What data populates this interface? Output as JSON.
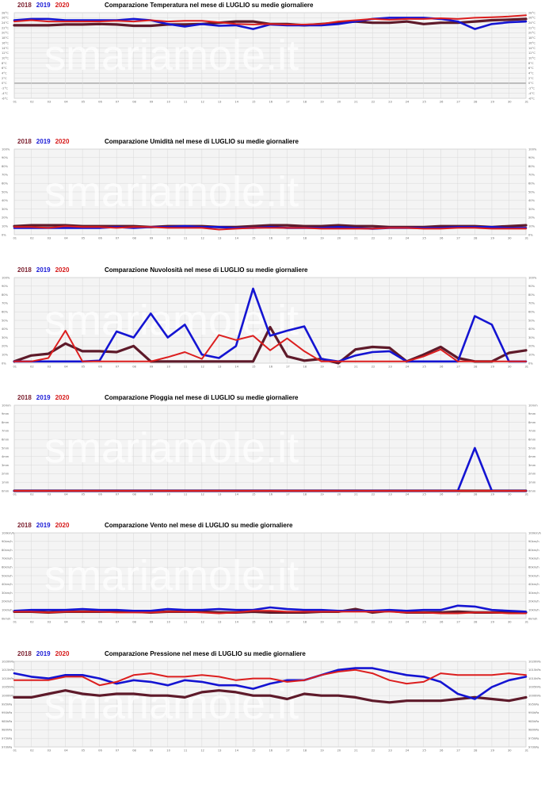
{
  "legend": {
    "items": [
      {
        "label": "2018",
        "color": "#7b1f2e"
      },
      {
        "label": "2019",
        "color": "#1a1ad6"
      },
      {
        "label": "2020",
        "color": "#d61a1a"
      }
    ]
  },
  "watermark": "smariamole.it",
  "colors": {
    "s2018": "#5e1a2a",
    "s2019": "#1414d2",
    "s2020": "#dc1e1e",
    "grid": "#d8d8d8",
    "plot_bg": "#f4f4f4"
  },
  "chart_data": [
    {
      "type": "line",
      "title": "Comparazione Temperatura nel mese di LUGLIO su medie giornaliere",
      "x": [
        1,
        2,
        3,
        4,
        5,
        6,
        7,
        8,
        9,
        10,
        11,
        12,
        13,
        14,
        15,
        16,
        17,
        18,
        19,
        20,
        21,
        22,
        23,
        24,
        25,
        26,
        27,
        28,
        29,
        30,
        31
      ],
      "ylim": [
        -6,
        28
      ],
      "y_ticks": [
        -6,
        -4,
        -2,
        0,
        2,
        4,
        6,
        8,
        10,
        12,
        14,
        16,
        18,
        20,
        22,
        24,
        26,
        28
      ],
      "y_tick_labels": [
        "-6°C",
        "-4°C",
        "-2°C",
        "0°C",
        "2°C",
        "4°C",
        "6°C",
        "8°C",
        "10°C",
        "12°C",
        "14°C",
        "16°C",
        "18°C",
        "20°C",
        "22°C",
        "24°C",
        "26°C",
        "28°C"
      ],
      "series": [
        {
          "name": "2018",
          "values": [
            23,
            23,
            23,
            23.3,
            23.3,
            23.5,
            23.3,
            22.8,
            22.8,
            23.3,
            23.3,
            23.5,
            24,
            24.5,
            24.5,
            23.5,
            23.5,
            23,
            23.5,
            24,
            24.5,
            24,
            24,
            24.5,
            23.5,
            24,
            24,
            24.5,
            25,
            25.2,
            25.5
          ]
        },
        {
          "name": "2019",
          "values": [
            25,
            25.5,
            25.5,
            25,
            25,
            25,
            25,
            25.5,
            25,
            23.5,
            22.5,
            23.5,
            22.8,
            23,
            21.5,
            23.3,
            23,
            23,
            23,
            23.5,
            24.5,
            25.5,
            26,
            26,
            26,
            25.5,
            24.5,
            21.5,
            23.5,
            24.2,
            24.5
          ]
        },
        {
          "name": "2020",
          "values": [
            24.5,
            25,
            24.5,
            24.5,
            24.5,
            24.5,
            24.8,
            24.5,
            25,
            24.5,
            24.8,
            24.8,
            24.2,
            23.5,
            23.3,
            23.5,
            23.3,
            23.3,
            23.5,
            24.5,
            25,
            25.5,
            25.2,
            25.5,
            25.5,
            25.8,
            25.5,
            26,
            26.2,
            26.5,
            27
          ]
        }
      ]
    },
    {
      "type": "line",
      "title": "Comparazione Umidità nel mese di LUGLIO su medie giornaliere",
      "x": [
        1,
        2,
        3,
        4,
        5,
        6,
        7,
        8,
        9,
        10,
        11,
        12,
        13,
        14,
        15,
        16,
        17,
        18,
        19,
        20,
        21,
        22,
        23,
        24,
        25,
        26,
        27,
        28,
        29,
        30,
        31
      ],
      "ylim": [
        0,
        100
      ],
      "y_ticks": [
        0,
        10,
        20,
        30,
        40,
        50,
        60,
        70,
        80,
        90,
        100
      ],
      "y_tick_labels": [
        "0%",
        "10%",
        "20%",
        "30%",
        "40%",
        "50%",
        "60%",
        "70%",
        "80%",
        "90%",
        "100%"
      ],
      "series": [
        {
          "name": "2018",
          "values": [
            10,
            11,
            11,
            11,
            10,
            10,
            10,
            10,
            9,
            10,
            10,
            10,
            9,
            9,
            10,
            11,
            11,
            10,
            10,
            11,
            10,
            10,
            9,
            9,
            9,
            10,
            10,
            10,
            9,
            10,
            11
          ]
        },
        {
          "name": "2019",
          "values": [
            8,
            8,
            8,
            8,
            8,
            8,
            9,
            8,
            9,
            9,
            10,
            9,
            9,
            8,
            8,
            9,
            8,
            8,
            8,
            9,
            8,
            7,
            8,
            8,
            8,
            8,
            9,
            9,
            9,
            8,
            8
          ]
        },
        {
          "name": "2020",
          "values": [
            9,
            9,
            8,
            10,
            9,
            9,
            8,
            9,
            9,
            8,
            8,
            8,
            6,
            7,
            8,
            8,
            8,
            8,
            7,
            7,
            7,
            7,
            8,
            8,
            7,
            7,
            8,
            8,
            7,
            7,
            7
          ]
        }
      ]
    },
    {
      "type": "line",
      "title": "Comparazione Nuvolosità nel mese di LUGLIO su medie giornaliere",
      "x": [
        1,
        2,
        3,
        4,
        5,
        6,
        7,
        8,
        9,
        10,
        11,
        12,
        13,
        14,
        15,
        16,
        17,
        18,
        19,
        20,
        21,
        22,
        23,
        24,
        25,
        26,
        27,
        28,
        29,
        30,
        31
      ],
      "ylim": [
        0,
        100
      ],
      "y_ticks": [
        0,
        10,
        20,
        30,
        40,
        50,
        60,
        70,
        80,
        90,
        100
      ],
      "y_tick_labels": [
        "0%",
        "10%",
        "20%",
        "30%",
        "40%",
        "50%",
        "60%",
        "70%",
        "80%",
        "90%",
        "100%"
      ],
      "series": [
        {
          "name": "2018",
          "values": [
            2,
            9,
            11,
            23,
            14,
            14,
            13,
            20,
            2,
            2,
            2,
            2,
            2,
            2,
            2,
            42,
            8,
            3,
            5,
            0,
            16,
            19,
            18,
            2,
            10,
            19,
            6,
            2,
            2,
            12,
            15
          ]
        },
        {
          "name": "2019",
          "values": [
            2,
            2,
            2,
            2,
            2,
            3,
            37,
            30,
            58,
            30,
            45,
            10,
            6,
            20,
            87,
            32,
            38,
            43,
            5,
            2,
            9,
            13,
            14,
            2,
            2,
            2,
            2,
            55,
            45,
            2,
            2
          ]
        },
        {
          "name": "2020",
          "values": [
            2,
            2,
            6,
            38,
            2,
            2,
            2,
            2,
            2,
            7,
            13,
            5,
            33,
            27,
            32,
            15,
            29,
            14,
            2,
            2,
            2,
            2,
            2,
            2,
            8,
            16,
            2,
            2,
            2,
            2,
            2
          ]
        }
      ]
    },
    {
      "type": "line",
      "title": "Comparazione Pioggia nel mese di LUGLIO su medie giornaliere",
      "x": [
        1,
        2,
        3,
        4,
        5,
        6,
        7,
        8,
        9,
        10,
        11,
        12,
        13,
        14,
        15,
        16,
        17,
        18,
        19,
        20,
        21,
        22,
        23,
        24,
        25,
        26,
        27,
        28,
        29,
        30,
        31
      ],
      "ylim": [
        0,
        10
      ],
      "y_ticks": [
        0,
        1,
        2,
        3,
        4,
        5,
        6,
        7,
        8,
        9,
        10
      ],
      "y_tick_labels": [
        "0mm",
        "1mm",
        "2mm",
        "3mm",
        "4mm",
        "5mm",
        "6mm",
        "7mm",
        "8mm",
        "9mm",
        "10mm"
      ],
      "series": [
        {
          "name": "2018",
          "values": [
            0,
            0,
            0,
            0,
            0,
            0,
            0,
            0,
            0,
            0,
            0,
            0,
            0,
            0,
            0,
            0,
            0,
            0,
            0,
            0,
            0,
            0,
            0,
            0,
            0,
            0,
            0,
            0,
            0,
            0,
            0
          ]
        },
        {
          "name": "2019",
          "values": [
            0,
            0,
            0,
            0,
            0,
            0,
            0,
            0,
            0,
            0,
            0,
            0,
            0,
            0,
            0,
            0,
            0,
            0,
            0,
            0,
            0,
            0,
            0,
            0,
            0,
            0,
            0,
            5,
            0,
            0,
            0
          ]
        },
        {
          "name": "2020",
          "values": [
            0,
            0,
            0,
            0,
            0,
            0,
            0,
            0,
            0,
            0,
            0,
            0,
            0,
            0,
            0,
            0,
            0,
            0,
            0,
            0,
            0,
            0,
            0,
            0,
            0,
            0,
            0,
            0,
            0,
            0,
            0
          ]
        }
      ]
    },
    {
      "type": "line",
      "title": "Comparazione Vento nel mese di LUGLIO su medie giornaliere",
      "x": [
        1,
        2,
        3,
        4,
        5,
        6,
        7,
        8,
        9,
        10,
        11,
        12,
        13,
        14,
        15,
        16,
        17,
        18,
        19,
        20,
        21,
        22,
        23,
        24,
        25,
        26,
        27,
        28,
        29,
        30,
        31
      ],
      "ylim": [
        0,
        100
      ],
      "y_ticks": [
        0,
        10,
        20,
        30,
        40,
        50,
        60,
        70,
        80,
        90,
        100
      ],
      "y_tick_labels": [
        "0km/h",
        "10km/h",
        "20km/h",
        "30km/h",
        "40km/h",
        "50km/h",
        "60km/h",
        "70km/h",
        "80km/h",
        "90km/h",
        "100km/h"
      ],
      "series": [
        {
          "name": "2018",
          "values": [
            8,
            8,
            7,
            8,
            8,
            8,
            8,
            8,
            7,
            8,
            8,
            8,
            7,
            7,
            8,
            7,
            7,
            7,
            8,
            8,
            11,
            7,
            9,
            7,
            7,
            7,
            8,
            7,
            7,
            7,
            7
          ]
        },
        {
          "name": "2019",
          "values": [
            9,
            10,
            10,
            10,
            11,
            10,
            10,
            9,
            9,
            11,
            10,
            10,
            11,
            10,
            10,
            13,
            11,
            10,
            10,
            9,
            9,
            9,
            10,
            9,
            10,
            10,
            15,
            14,
            10,
            9,
            8
          ]
        },
        {
          "name": "2020",
          "values": [
            8,
            8,
            7,
            8,
            8,
            8,
            7,
            7,
            7,
            8,
            8,
            7,
            6,
            7,
            9,
            9,
            8,
            8,
            8,
            8,
            8,
            8,
            8,
            7,
            7,
            6,
            6,
            7,
            7,
            6,
            6
          ]
        }
      ]
    },
    {
      "type": "line",
      "title": "Comparazione Pressione nel mese di LUGLIO su medie giornaliere",
      "x": [
        1,
        2,
        3,
        4,
        5,
        6,
        7,
        8,
        9,
        10,
        11,
        12,
        13,
        14,
        15,
        16,
        17,
        18,
        19,
        20,
        21,
        22,
        23,
        24,
        25,
        26,
        27,
        28,
        29,
        30,
        31
      ],
      "ylim": [
        970,
        1020
      ],
      "y_ticks": [
        970,
        975,
        980,
        985,
        990,
        995,
        1000,
        1005,
        1010,
        1015,
        1020
      ],
      "y_tick_labels": [
        "970hPa",
        "975hPa",
        "980hPa",
        "985hPa",
        "990hPa",
        "995hPa",
        "1000hPa",
        "1005hPa",
        "1010hPa",
        "1015hPa",
        "1020hPa"
      ],
      "series": [
        {
          "name": "2018",
          "values": [
            999,
            999,
            1001,
            1003,
            1001,
            1000,
            1001,
            1001,
            1000,
            1000,
            999,
            1002,
            1003,
            1002,
            1000,
            1000,
            998,
            1001,
            1000,
            1000,
            999,
            997,
            996,
            997,
            997,
            997,
            998,
            999,
            998,
            997,
            999
          ]
        },
        {
          "name": "2019",
          "values": [
            1013,
            1011,
            1010,
            1012,
            1012,
            1010,
            1007,
            1009,
            1008,
            1006,
            1009,
            1008,
            1006,
            1006,
            1004,
            1007,
            1009,
            1009,
            1012,
            1015,
            1016,
            1016,
            1014,
            1012,
            1011,
            1008,
            1001,
            998,
            1005,
            1009,
            1011
          ]
        },
        {
          "name": "2020",
          "values": [
            1009,
            1009,
            1009,
            1011,
            1011,
            1006,
            1008,
            1012,
            1013,
            1011,
            1011,
            1012,
            1011,
            1009,
            1010,
            1010,
            1008,
            1009,
            1012,
            1014,
            1015,
            1013,
            1009,
            1007,
            1008,
            1013,
            1012,
            1012,
            1012,
            1013,
            1012
          ]
        }
      ]
    }
  ]
}
